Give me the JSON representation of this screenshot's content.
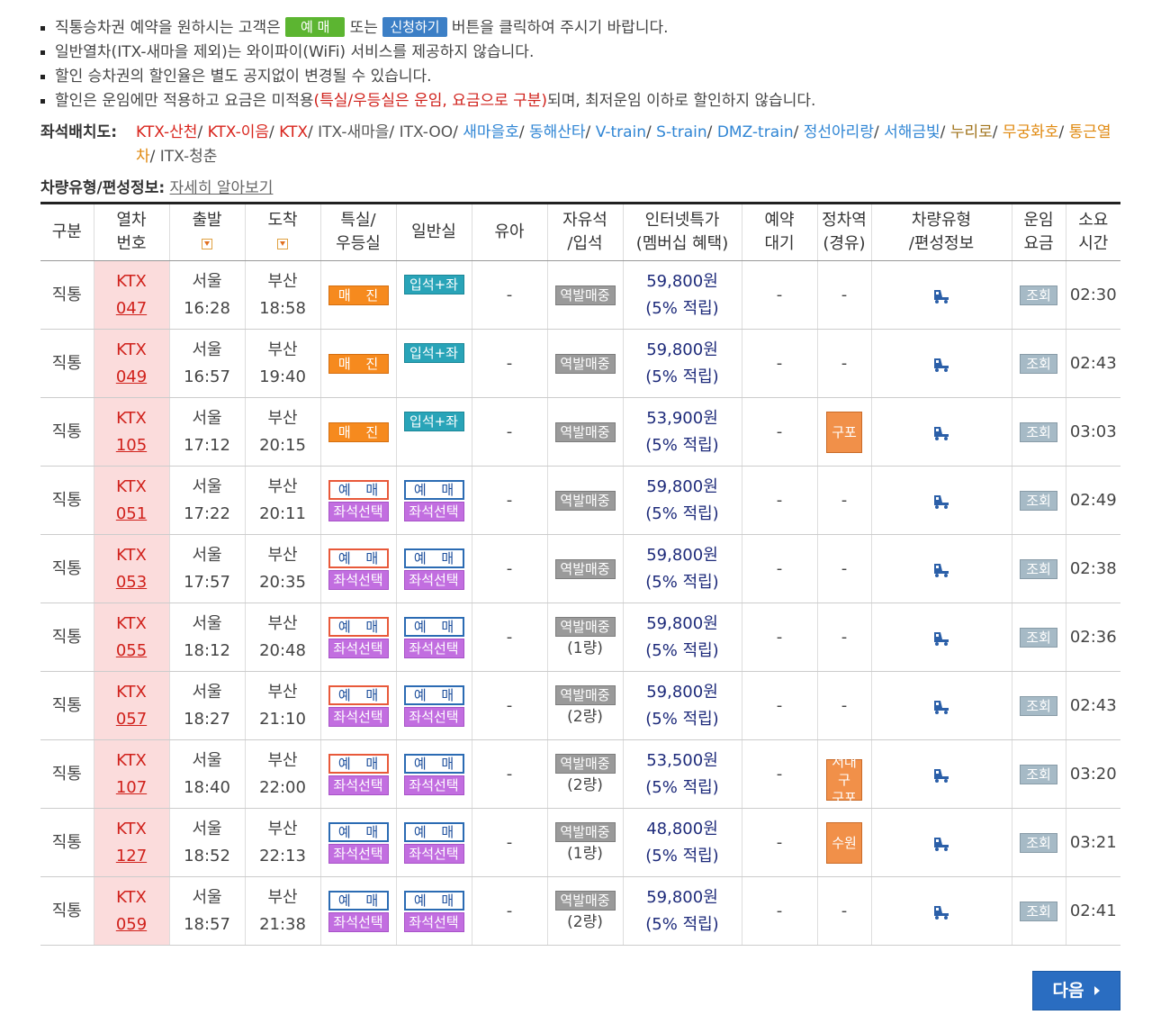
{
  "notices": {
    "line1_a": "직통승차권 예약을 원하시는 고객은",
    "line1_btn1": "예 매",
    "line1_or": "또는",
    "line1_btn2": "신청하기",
    "line1_b": "버튼을 클릭하여 주시기 바랍니다.",
    "line2": "일반열차(ITX-새마을 제외)는 와이파이(WiFi) 서비스를 제공하지 않습니다.",
    "line3": "할인 승차권의 할인율은 별도 공지없이 변경될 수 있습니다.",
    "line4_a": "할인은 운임에만 적용하고 요금은 미적용",
    "line4_red": "(특실/우등실은 운임, 요금으로 구분)",
    "line4_b": "되며, 최저운임 이하로 할인하지 않습니다."
  },
  "seatmap": {
    "label": "좌석배치도:",
    "links": [
      {
        "text": "KTX-산천",
        "color": "red"
      },
      {
        "text": "KTX-이음",
        "color": "red"
      },
      {
        "text": "KTX",
        "color": "red"
      },
      {
        "text": "ITX-새마을",
        "color": "gray"
      },
      {
        "text": "ITX-OO",
        "color": "gray"
      },
      {
        "text": "새마을호",
        "color": "blue"
      },
      {
        "text": "동해산타",
        "color": "blue"
      },
      {
        "text": "V-train",
        "color": "blue"
      },
      {
        "text": "S-train",
        "color": "blue"
      },
      {
        "text": "DMZ-train",
        "color": "blue"
      },
      {
        "text": "정선아리랑",
        "color": "blue"
      },
      {
        "text": "서해금빛",
        "color": "blue"
      },
      {
        "text": "누리로",
        "color": "olive"
      },
      {
        "text": "무궁화호",
        "color": "orange"
      },
      {
        "text": "통근열차",
        "color": "orange"
      },
      {
        "text": "ITX-청춘",
        "color": "gray"
      }
    ]
  },
  "vehicle": {
    "label": "차량유형/편성정보:",
    "link": "자세히 알아보기"
  },
  "headers": {
    "type": "구분",
    "trainno_1": "열차",
    "trainno_2": "번호",
    "depart": "출발",
    "arrive": "도착",
    "special_1": "특실/",
    "special_2": "우등실",
    "general": "일반실",
    "infant": "유아",
    "free_1": "자유석",
    "free_2": "/입석",
    "inet_1": "인터넷특가",
    "inet_2": "(멤버십 혜택)",
    "wait_1": "예약",
    "wait_2": "대기",
    "stop_1": "정차역",
    "stop_2": "(경유)",
    "vtype_1": "차량유형",
    "vtype_2": "/편성정보",
    "fare_1": "운임",
    "fare_2": "요금",
    "dur_1": "소요",
    "dur_2": "시간"
  },
  "labels": {
    "soldout": "매 진",
    "standing": "입석+좌석",
    "reserve": "예 매",
    "seat_select": "좌석선택",
    "station_sale": "역발매중",
    "view": "조회",
    "dash": "-",
    "next": "다음"
  },
  "rows": [
    {
      "type": "직통",
      "train": "KTX",
      "no": "047",
      "dep_st": "서울",
      "dep_t": "16:28",
      "arr_st": "부산",
      "arr_t": "18:58",
      "special": "soldout",
      "general": "standing",
      "infant": "-",
      "free_count": "",
      "price": "59,800원",
      "benefit": "(5% 적립)",
      "wait": "-",
      "stop": "-",
      "duration": "02:30"
    },
    {
      "type": "직통",
      "train": "KTX",
      "no": "049",
      "dep_st": "서울",
      "dep_t": "16:57",
      "arr_st": "부산",
      "arr_t": "19:40",
      "special": "soldout",
      "general": "standing",
      "infant": "-",
      "free_count": "",
      "price": "59,800원",
      "benefit": "(5% 적립)",
      "wait": "-",
      "stop": "-",
      "duration": "02:43"
    },
    {
      "type": "직통",
      "train": "KTX",
      "no": "105",
      "dep_st": "서울",
      "dep_t": "17:12",
      "arr_st": "부산",
      "arr_t": "20:15",
      "special": "soldout",
      "general": "standing",
      "infant": "-",
      "free_count": "",
      "price": "53,900원",
      "benefit": "(5% 적립)",
      "wait": "-",
      "stop": "구포",
      "duration": "03:03"
    },
    {
      "type": "직통",
      "train": "KTX",
      "no": "051",
      "dep_st": "서울",
      "dep_t": "17:22",
      "arr_st": "부산",
      "arr_t": "20:11",
      "special": "reserve-o",
      "general": "reserve-b",
      "infant": "-",
      "free_count": "",
      "price": "59,800원",
      "benefit": "(5% 적립)",
      "wait": "-",
      "stop": "-",
      "duration": "02:49"
    },
    {
      "type": "직통",
      "train": "KTX",
      "no": "053",
      "dep_st": "서울",
      "dep_t": "17:57",
      "arr_st": "부산",
      "arr_t": "20:35",
      "special": "reserve-o",
      "general": "reserve-b",
      "infant": "-",
      "free_count": "",
      "price": "59,800원",
      "benefit": "(5% 적립)",
      "wait": "-",
      "stop": "-",
      "duration": "02:38"
    },
    {
      "type": "직통",
      "train": "KTX",
      "no": "055",
      "dep_st": "서울",
      "dep_t": "18:12",
      "arr_st": "부산",
      "arr_t": "20:48",
      "special": "reserve-o",
      "general": "reserve-b",
      "infant": "-",
      "free_count": "(1량)",
      "price": "59,800원",
      "benefit": "(5% 적립)",
      "wait": "-",
      "stop": "-",
      "duration": "02:36"
    },
    {
      "type": "직통",
      "train": "KTX",
      "no": "057",
      "dep_st": "서울",
      "dep_t": "18:27",
      "arr_st": "부산",
      "arr_t": "21:10",
      "special": "reserve-o",
      "general": "reserve-b",
      "infant": "-",
      "free_count": "(2량)",
      "price": "59,800원",
      "benefit": "(5% 적립)",
      "wait": "-",
      "stop": "-",
      "duration": "02:43"
    },
    {
      "type": "직통",
      "train": "KTX",
      "no": "107",
      "dep_st": "서울",
      "dep_t": "18:40",
      "arr_st": "부산",
      "arr_t": "22:00",
      "special": "reserve-o",
      "general": "reserve-b",
      "infant": "-",
      "free_count": "(2량)",
      "price": "53,500원",
      "benefit": "(5% 적립)",
      "wait": "-",
      "stop": "서대구|구포",
      "duration": "03:20"
    },
    {
      "type": "직통",
      "train": "KTX",
      "no": "127",
      "dep_st": "서울",
      "dep_t": "18:52",
      "arr_st": "부산",
      "arr_t": "22:13",
      "special": "reserve-b",
      "general": "reserve-b",
      "infant": "-",
      "free_count": "(1량)",
      "price": "48,800원",
      "benefit": "(5% 적립)",
      "wait": "-",
      "stop": "수원",
      "duration": "03:21"
    },
    {
      "type": "직통",
      "train": "KTX",
      "no": "059",
      "dep_st": "서울",
      "dep_t": "18:57",
      "arr_st": "부산",
      "arr_t": "21:38",
      "special": "reserve-b",
      "general": "reserve-b",
      "infant": "-",
      "free_count": "(2량)",
      "price": "59,800원",
      "benefit": "(5% 적립)",
      "wait": "-",
      "stop": "-",
      "duration": "02:41"
    }
  ],
  "icons": {
    "sort": "sort-down-icon",
    "vehicle": "train-icon",
    "next_arrow": "arrow-right-icon"
  },
  "colors": {
    "accent": "#2a6dc1",
    "soldout": "#f68a1e",
    "seat_select": "#c26ee0",
    "train_no_bg": "#fbdcdc"
  }
}
